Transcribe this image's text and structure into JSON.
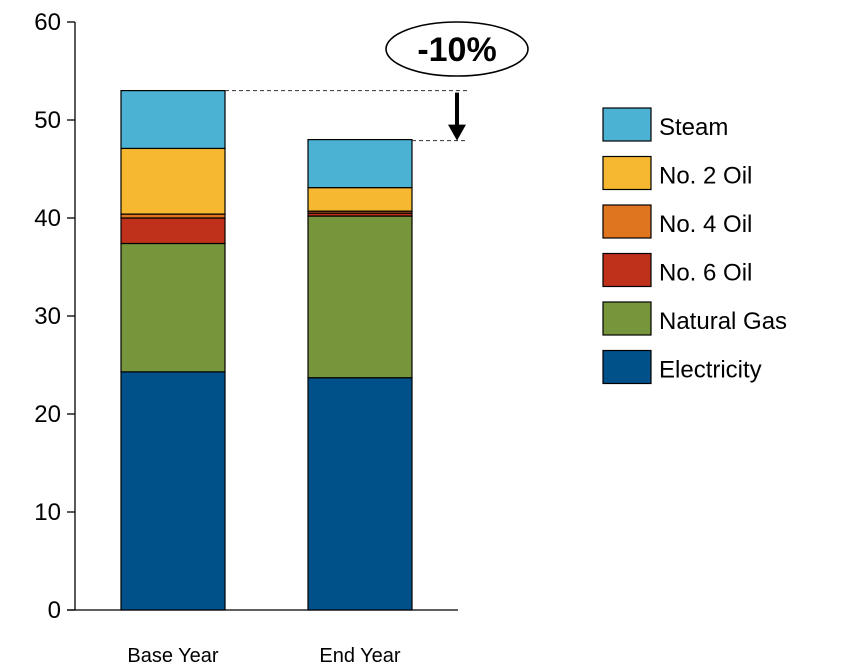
{
  "chart_data": {
    "type": "bar",
    "stacked": true,
    "title": "",
    "xlabel": "",
    "ylabel": "",
    "ylim": [
      0,
      60
    ],
    "yticks": [
      0,
      10,
      20,
      30,
      40,
      50,
      60
    ],
    "grid": false,
    "legend_position": "right",
    "categories": [
      "Base Year",
      "End Year"
    ],
    "series": [
      {
        "name": "Electricity",
        "color": "#00508A",
        "values": [
          24.3,
          23.7
        ]
      },
      {
        "name": "Natural Gas",
        "color": "#77963C",
        "values": [
          13.1,
          16.5
        ]
      },
      {
        "name": "No. 6 Oil",
        "color": "#C0311C",
        "values": [
          2.6,
          0.3
        ]
      },
      {
        "name": "No. 4 Oil",
        "color": "#E07520",
        "values": [
          0.4,
          0.2
        ]
      },
      {
        "name": "No. 2 Oil",
        "color": "#F6B830",
        "values": [
          6.7,
          2.4
        ]
      },
      {
        "name": "Steam",
        "color": "#4BB2D4",
        "values": [
          5.9,
          4.9
        ]
      }
    ],
    "legend_order": [
      "Steam",
      "No. 2 Oil",
      "No. 4 Oil",
      "No. 6 Oil",
      "Natural Gas",
      "Electricity"
    ],
    "annotation": {
      "text": "-10%",
      "from_total": 53.0,
      "to_total": 47.9
    }
  }
}
